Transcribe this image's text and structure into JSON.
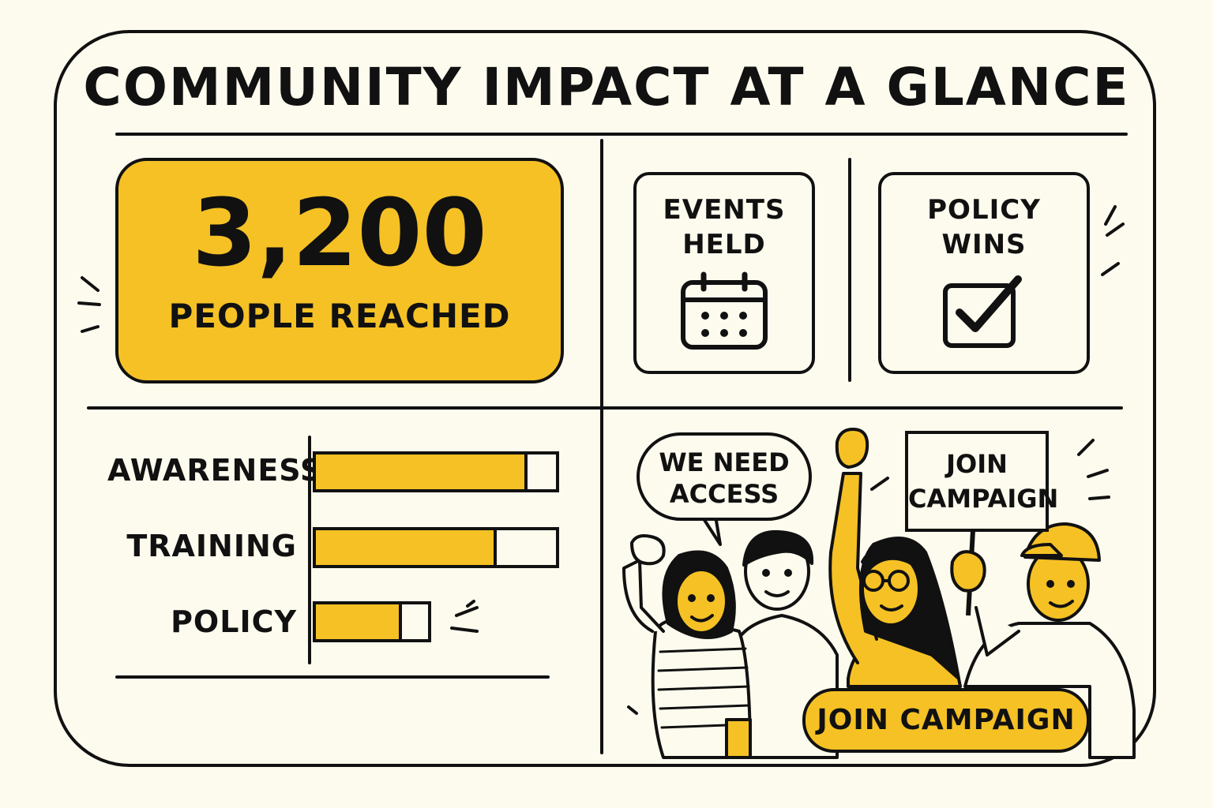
{
  "header": {
    "title": "COMMUNITY IMPACT AT A GLANCE"
  },
  "highlight": {
    "value": "3,200",
    "label": "PEOPLE REACHED"
  },
  "stats": [
    {
      "label_line1": "EVENTS",
      "label_line2": "HELD",
      "icon": "calendar-icon"
    },
    {
      "label_line1": "POLICY",
      "label_line2": "WINS",
      "icon": "checkbox-icon"
    }
  ],
  "progress": [
    {
      "label": "AWARENESS",
      "fraction": 0.87
    },
    {
      "label": "TRAINING",
      "fraction": 0.74
    },
    {
      "label": "POLICY",
      "fraction": 0.74
    }
  ],
  "illustration": {
    "speech_bubble_line1": "WE NEED",
    "speech_bubble_line2": "ACCESS",
    "sign_line1": "JOIN",
    "sign_line2": "CAMPAIGN"
  },
  "cta": {
    "label": "JOIN CAMPAIGN"
  },
  "colors": {
    "accent": "#f5c125",
    "ink": "#111111",
    "background": "#fdfbee"
  }
}
